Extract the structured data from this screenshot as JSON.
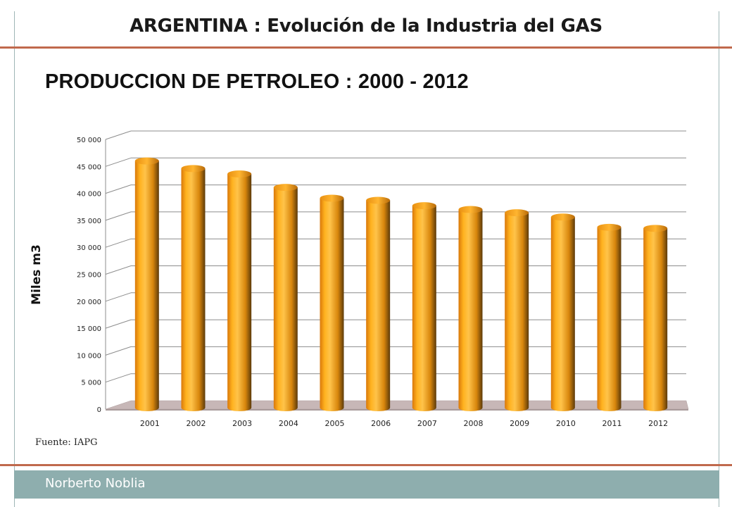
{
  "header": {
    "title": "ARGENTINA :  Evolución de la Industria del GAS"
  },
  "footer": {
    "author": "Norberto Noblia"
  },
  "source": "Fuente: IAPG",
  "colors": {
    "accent_rule": "#c0694d",
    "footer_bar": "#8eaeae",
    "bar_fill": "#f7a21b",
    "floor": "#c7b7b7"
  },
  "chart_data": {
    "type": "bar",
    "title": "PRODUCCION  DE PETROLEO  : 2000 - 2012",
    "xlabel": "",
    "ylabel": "Miles m3",
    "categories": [
      "2001",
      "2002",
      "2003",
      "2004",
      "2005",
      "2006",
      "2007",
      "2008",
      "2009",
      "2010",
      "2011",
      "2012"
    ],
    "values": [
      44700,
      43300,
      42300,
      39800,
      37800,
      37400,
      36400,
      35700,
      35100,
      34300,
      32400,
      32200
    ],
    "ylim": [
      0,
      50000
    ],
    "yticks": [
      "0",
      "5 000",
      "10 000",
      "15 000",
      "20 000",
      "25 000",
      "30 000",
      "35 000",
      "40 000",
      "45 000",
      "50 000"
    ],
    "grid": true,
    "legend": "none"
  }
}
